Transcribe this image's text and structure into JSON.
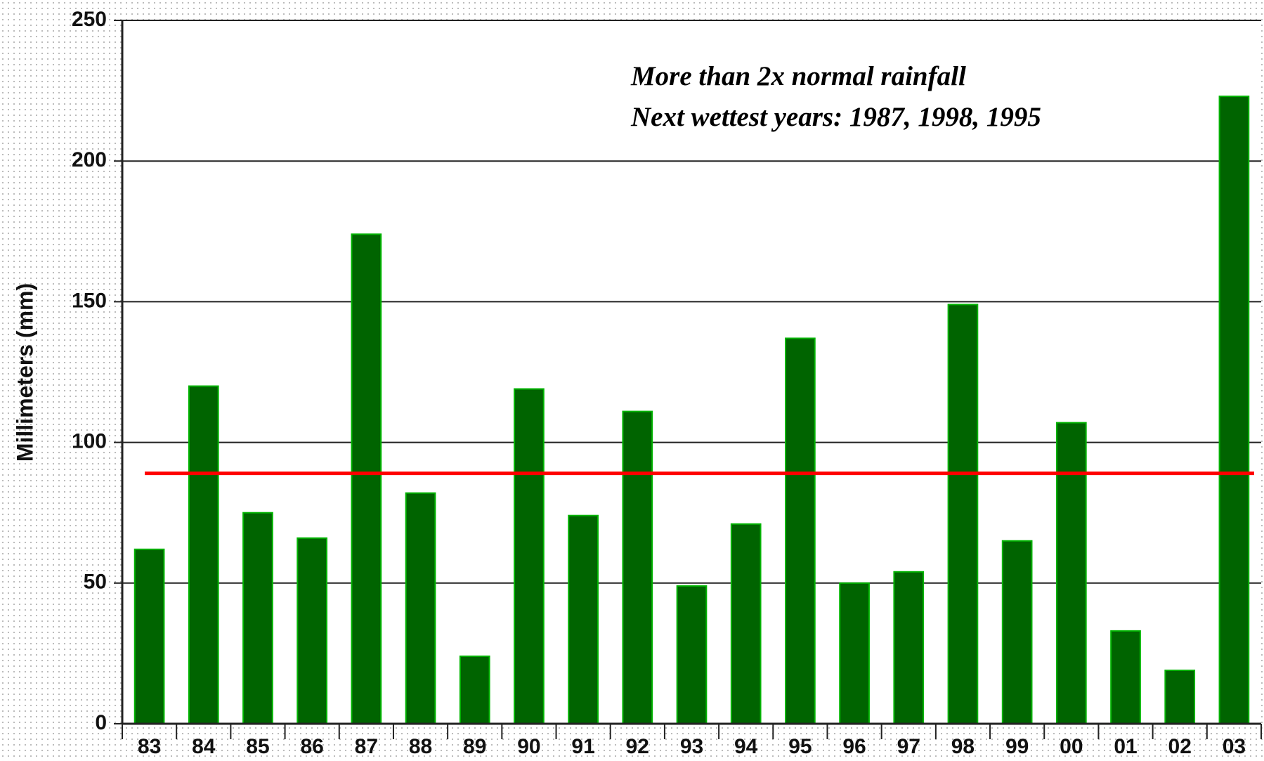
{
  "chart_data": {
    "type": "bar",
    "y_label": "Millimeters (mm)",
    "annotations": [
      "More than 2x normal rainfall",
      "Next wettest years: 1987, 1998, 1995"
    ],
    "categories": [
      "83",
      "84",
      "85",
      "86",
      "87",
      "88",
      "89",
      "90",
      "91",
      "92",
      "93",
      "94",
      "95",
      "96",
      "97",
      "98",
      "99",
      "00",
      "01",
      "02",
      "03"
    ],
    "values": [
      62,
      120,
      75,
      66,
      174,
      82,
      24,
      119,
      74,
      111,
      49,
      71,
      137,
      50,
      54,
      149,
      65,
      107,
      33,
      19,
      223
    ],
    "color": "#006400",
    "reference_line": 89,
    "reference_color": "#ff0000",
    "ylim": [
      0,
      250
    ],
    "yticks": [
      0,
      50,
      100,
      150,
      200,
      250
    ],
    "grid": true
  }
}
